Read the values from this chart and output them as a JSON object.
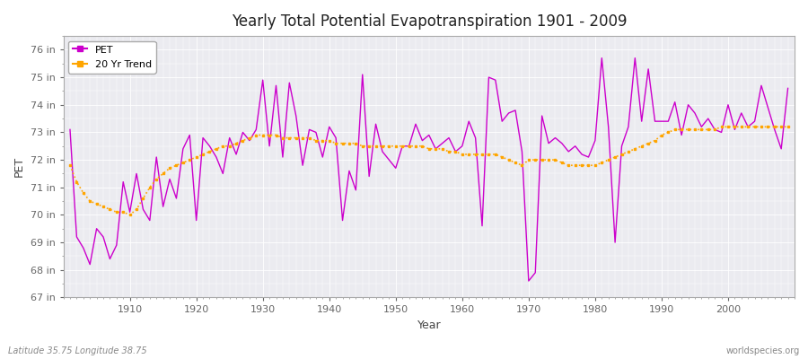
{
  "title": "Yearly Total Potential Evapotranspiration 1901 - 2009",
  "xlabel": "Year",
  "ylabel": "PET",
  "subtitle_left": "Latitude 35.75 Longitude 38.75",
  "subtitle_right": "worldspecies.org",
  "ylim": [
    67,
    76.5
  ],
  "yticks": [
    67,
    68,
    69,
    70,
    71,
    72,
    73,
    74,
    75,
    76
  ],
  "ytick_labels": [
    "67 in",
    "68 in",
    "69 in",
    "70 in",
    "71 in",
    "72 in",
    "73 in",
    "74 in",
    "75 in",
    "76 in"
  ],
  "xlim": [
    1900,
    2010
  ],
  "xticks": [
    1910,
    1920,
    1930,
    1940,
    1950,
    1960,
    1970,
    1980,
    1990,
    2000
  ],
  "pet_color": "#cc00cc",
  "trend_color": "#ffa500",
  "fig_bg_color": "#ffffff",
  "plot_bg_color": "#ebebf0",
  "legend_labels": [
    "PET",
    "20 Yr Trend"
  ],
  "years": [
    1901,
    1902,
    1903,
    1904,
    1905,
    1906,
    1907,
    1908,
    1909,
    1910,
    1911,
    1912,
    1913,
    1914,
    1915,
    1916,
    1917,
    1918,
    1919,
    1920,
    1921,
    1922,
    1923,
    1924,
    1925,
    1926,
    1927,
    1928,
    1929,
    1930,
    1931,
    1932,
    1933,
    1934,
    1935,
    1936,
    1937,
    1938,
    1939,
    1940,
    1941,
    1942,
    1943,
    1944,
    1945,
    1946,
    1947,
    1948,
    1949,
    1950,
    1951,
    1952,
    1953,
    1954,
    1955,
    1956,
    1957,
    1958,
    1959,
    1960,
    1961,
    1962,
    1963,
    1964,
    1965,
    1966,
    1967,
    1968,
    1969,
    1970,
    1971,
    1972,
    1973,
    1974,
    1975,
    1976,
    1977,
    1978,
    1979,
    1980,
    1981,
    1982,
    1983,
    1984,
    1985,
    1986,
    1987,
    1988,
    1989,
    1990,
    1991,
    1992,
    1993,
    1994,
    1995,
    1996,
    1997,
    1998,
    1999,
    2000,
    2001,
    2002,
    2003,
    2004,
    2005,
    2006,
    2007,
    2008,
    2009
  ],
  "pet_values": [
    73.1,
    69.2,
    68.8,
    68.2,
    69.5,
    69.2,
    68.4,
    68.9,
    71.2,
    70.1,
    71.5,
    70.2,
    69.8,
    72.1,
    70.3,
    71.3,
    70.6,
    72.4,
    72.9,
    69.8,
    72.8,
    72.5,
    72.1,
    71.5,
    72.8,
    72.2,
    73.0,
    72.7,
    73.1,
    74.9,
    72.5,
    74.7,
    72.1,
    74.8,
    73.6,
    71.8,
    73.1,
    73.0,
    72.1,
    73.2,
    72.8,
    69.8,
    71.6,
    70.9,
    75.1,
    71.4,
    73.3,
    72.3,
    72.0,
    71.7,
    72.5,
    72.5,
    73.3,
    72.7,
    72.9,
    72.4,
    72.6,
    72.8,
    72.3,
    72.5,
    73.4,
    72.8,
    69.6,
    75.0,
    74.9,
    73.4,
    73.7,
    73.8,
    72.3,
    67.6,
    67.9,
    73.6,
    72.6,
    72.8,
    72.6,
    72.3,
    72.5,
    72.2,
    72.1,
    72.7,
    75.7,
    73.2,
    69.0,
    72.5,
    73.2,
    75.7,
    73.4,
    75.3,
    73.4,
    73.4,
    73.4,
    74.1,
    72.9,
    74.0,
    73.7,
    73.2,
    73.5,
    73.1,
    73.0,
    74.0,
    73.1,
    73.7,
    73.2,
    73.4,
    74.7,
    73.9,
    73.1,
    72.4,
    74.6
  ],
  "trend_years": [
    1901,
    1902,
    1903,
    1904,
    1905,
    1906,
    1907,
    1908,
    1909,
    1910,
    1911,
    1912,
    1913,
    1914,
    1915,
    1916,
    1917,
    1918,
    1919,
    1920,
    1921,
    1922,
    1923,
    1924,
    1925,
    1926,
    1927,
    1928,
    1929,
    1930,
    1931,
    1932,
    1933,
    1934,
    1935,
    1936,
    1937,
    1938,
    1939,
    1940,
    1941,
    1942,
    1943,
    1944,
    1945,
    1946,
    1947,
    1948,
    1949,
    1950,
    1951,
    1952,
    1953,
    1954,
    1955,
    1956,
    1957,
    1958,
    1959,
    1960,
    1961,
    1962,
    1963,
    1964,
    1965,
    1966,
    1967,
    1968,
    1969,
    1970,
    1971,
    1972,
    1973,
    1974,
    1975,
    1976,
    1977,
    1978,
    1979,
    1980,
    1981,
    1982,
    1983,
    1984,
    1985,
    1986,
    1987,
    1988,
    1989,
    1990,
    1991,
    1992,
    1993,
    1994,
    1995,
    1996,
    1997,
    1998,
    1999,
    2000,
    2001,
    2002,
    2003,
    2004,
    2005,
    2006,
    2007,
    2008,
    2009
  ],
  "trend_values": [
    71.8,
    71.2,
    70.8,
    70.5,
    70.4,
    70.3,
    70.2,
    70.1,
    70.1,
    70.0,
    70.2,
    70.6,
    71.0,
    71.3,
    71.5,
    71.7,
    71.8,
    71.9,
    72.0,
    72.1,
    72.2,
    72.3,
    72.4,
    72.5,
    72.5,
    72.6,
    72.7,
    72.8,
    72.9,
    72.9,
    72.9,
    72.9,
    72.8,
    72.8,
    72.8,
    72.8,
    72.8,
    72.7,
    72.7,
    72.7,
    72.6,
    72.6,
    72.6,
    72.6,
    72.5,
    72.5,
    72.5,
    72.5,
    72.5,
    72.5,
    72.5,
    72.5,
    72.5,
    72.5,
    72.4,
    72.4,
    72.4,
    72.3,
    72.3,
    72.2,
    72.2,
    72.2,
    72.2,
    72.2,
    72.2,
    72.1,
    72.0,
    71.9,
    71.8,
    72.0,
    72.0,
    72.0,
    72.0,
    72.0,
    71.9,
    71.8,
    71.8,
    71.8,
    71.8,
    71.8,
    71.9,
    72.0,
    72.1,
    72.2,
    72.3,
    72.4,
    72.5,
    72.6,
    72.7,
    72.9,
    73.0,
    73.1,
    73.1,
    73.1,
    73.1,
    73.1,
    73.1,
    73.1,
    73.2,
    73.2,
    73.2,
    73.2,
    73.2,
    73.2,
    73.2,
    73.2,
    73.2,
    73.2,
    73.2
  ]
}
